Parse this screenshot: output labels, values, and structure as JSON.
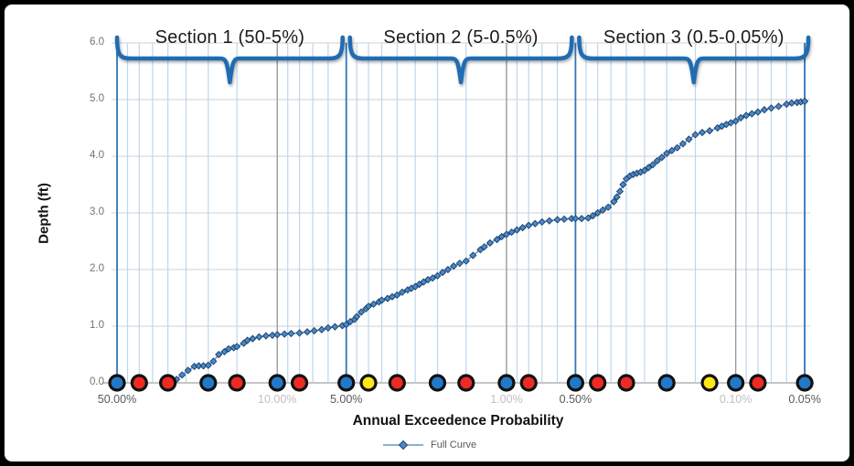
{
  "window": {
    "background": "#000000",
    "card_background": "#ffffff"
  },
  "chart_data": {
    "type": "line",
    "title": "",
    "xlabel": "Annual Exceedence Probability",
    "ylabel": "Depth (ft)",
    "x_scale": "log10-reversed-percent",
    "x_range_pct": [
      50,
      0.05
    ],
    "ylim": [
      0,
      6
    ],
    "grid": "on",
    "legend_position": "bottom-center",
    "sections": [
      {
        "label": "Section 1 (50-5%)",
        "from_pct": 50,
        "to_pct": 5
      },
      {
        "label": "Section 2 (5-0.5%)",
        "from_pct": 5,
        "to_pct": 0.5
      },
      {
        "label": "Section 3 (0.5-0.05%)",
        "from_pct": 0.5,
        "to_pct": 0.05
      }
    ],
    "x_ticks": [
      {
        "label": "50.00%",
        "value": 50,
        "strong": true
      },
      {
        "label": "10.00%",
        "value": 10,
        "strong": false
      },
      {
        "label": "5.00%",
        "value": 5,
        "strong": true
      },
      {
        "label": "1.00%",
        "value": 1,
        "strong": false
      },
      {
        "label": "0.50%",
        "value": 0.5,
        "strong": true
      },
      {
        "label": "0.10%",
        "value": 0.1,
        "strong": false
      },
      {
        "label": "0.05%",
        "value": 0.05,
        "strong": true
      }
    ],
    "y_ticks": [
      {
        "label": "0.0",
        "value": 0
      },
      {
        "label": "1.0",
        "value": 1
      },
      {
        "label": "2.0",
        "value": 2
      },
      {
        "label": "3.0",
        "value": 3
      },
      {
        "label": "4.0",
        "value": 4
      },
      {
        "label": "5.0",
        "value": 5
      },
      {
        "label": "6.0",
        "value": 6
      }
    ],
    "gridlines": {
      "minor_vertical_pct": [
        45,
        40,
        35,
        30,
        25,
        20,
        15,
        9,
        8,
        7,
        6,
        4.5,
        4,
        3.5,
        3,
        2.5,
        2,
        1.5,
        0.9,
        0.8,
        0.7,
        0.6,
        0.45,
        0.4,
        0.35,
        0.3,
        0.25,
        0.2,
        0.15,
        0.09,
        0.08,
        0.07,
        0.06
      ],
      "major_vertical_pct": [
        10,
        1,
        0.1
      ],
      "boundary_vertical_pct": [
        50,
        5,
        0.5,
        0.05
      ],
      "horizontal_values": [
        1,
        2,
        3,
        4,
        5,
        6
      ]
    },
    "event_dots": [
      {
        "value_pct": 50,
        "color": "blue"
      },
      {
        "value_pct": 40,
        "color": "red"
      },
      {
        "value_pct": 30,
        "color": "red"
      },
      {
        "value_pct": 20,
        "color": "blue"
      },
      {
        "value_pct": 15,
        "color": "red"
      },
      {
        "value_pct": 10,
        "color": "blue"
      },
      {
        "value_pct": 8,
        "color": "red"
      },
      {
        "value_pct": 5,
        "color": "blue"
      },
      {
        "value_pct": 4,
        "color": "yellow"
      },
      {
        "value_pct": 3,
        "color": "red"
      },
      {
        "value_pct": 2,
        "color": "blue"
      },
      {
        "value_pct": 1.5,
        "color": "red"
      },
      {
        "value_pct": 1,
        "color": "blue"
      },
      {
        "value_pct": 0.8,
        "color": "red"
      },
      {
        "value_pct": 0.5,
        "color": "blue"
      },
      {
        "value_pct": 0.4,
        "color": "red"
      },
      {
        "value_pct": 0.3,
        "color": "red"
      },
      {
        "value_pct": 0.2,
        "color": "blue"
      },
      {
        "value_pct": 0.13,
        "color": "yellow"
      },
      {
        "value_pct": 0.1,
        "color": "blue"
      },
      {
        "value_pct": 0.08,
        "color": "red"
      },
      {
        "value_pct": 0.05,
        "color": "blue"
      }
    ],
    "series": [
      {
        "name": "Full Curve",
        "points": [
          [
            29,
            0.0
          ],
          [
            27.5,
            0.06
          ],
          [
            26,
            0.14
          ],
          [
            24.5,
            0.22
          ],
          [
            23,
            0.29
          ],
          [
            22,
            0.3
          ],
          [
            21,
            0.3
          ],
          [
            20,
            0.31
          ],
          [
            19,
            0.38
          ],
          [
            18,
            0.5
          ],
          [
            17,
            0.55
          ],
          [
            16.3,
            0.6
          ],
          [
            15.5,
            0.62
          ],
          [
            15,
            0.64
          ],
          [
            14,
            0.7
          ],
          [
            13.5,
            0.75
          ],
          [
            12.8,
            0.78
          ],
          [
            12,
            0.81
          ],
          [
            11.2,
            0.83
          ],
          [
            10.5,
            0.84
          ],
          [
            10,
            0.85
          ],
          [
            9.3,
            0.86
          ],
          [
            8.7,
            0.87
          ],
          [
            8,
            0.88
          ],
          [
            7.4,
            0.9
          ],
          [
            6.9,
            0.92
          ],
          [
            6.4,
            0.94
          ],
          [
            6,
            0.97
          ],
          [
            5.6,
            0.99
          ],
          [
            5.2,
            1.01
          ],
          [
            5,
            1.03
          ],
          [
            4.8,
            1.08
          ],
          [
            4.6,
            1.12
          ],
          [
            4.5,
            1.17
          ],
          [
            4.3,
            1.25
          ],
          [
            4.1,
            1.31
          ],
          [
            4,
            1.35
          ],
          [
            3.8,
            1.39
          ],
          [
            3.6,
            1.43
          ],
          [
            3.5,
            1.46
          ],
          [
            3.3,
            1.49
          ],
          [
            3.15,
            1.52
          ],
          [
            3,
            1.55
          ],
          [
            2.85,
            1.6
          ],
          [
            2.7,
            1.64
          ],
          [
            2.6,
            1.67
          ],
          [
            2.5,
            1.7
          ],
          [
            2.4,
            1.74
          ],
          [
            2.3,
            1.78
          ],
          [
            2.2,
            1.82
          ],
          [
            2.1,
            1.85
          ],
          [
            2,
            1.89
          ],
          [
            1.9,
            1.95
          ],
          [
            1.8,
            2.0
          ],
          [
            1.7,
            2.06
          ],
          [
            1.6,
            2.11
          ],
          [
            1.5,
            2.15
          ],
          [
            1.4,
            2.25
          ],
          [
            1.3,
            2.35
          ],
          [
            1.25,
            2.4
          ],
          [
            1.18,
            2.47
          ],
          [
            1.1,
            2.53
          ],
          [
            1.05,
            2.58
          ],
          [
            1,
            2.62
          ],
          [
            0.95,
            2.66
          ],
          [
            0.9,
            2.7
          ],
          [
            0.85,
            2.74
          ],
          [
            0.8,
            2.78
          ],
          [
            0.75,
            2.81
          ],
          [
            0.7,
            2.84
          ],
          [
            0.65,
            2.86
          ],
          [
            0.6,
            2.88
          ],
          [
            0.56,
            2.89
          ],
          [
            0.52,
            2.9
          ],
          [
            0.5,
            2.9
          ],
          [
            0.47,
            2.9
          ],
          [
            0.44,
            2.91
          ],
          [
            0.42,
            2.95
          ],
          [
            0.4,
            3.0
          ],
          [
            0.38,
            3.05
          ],
          [
            0.36,
            3.1
          ],
          [
            0.34,
            3.2
          ],
          [
            0.33,
            3.28
          ],
          [
            0.32,
            3.38
          ],
          [
            0.31,
            3.5
          ],
          [
            0.3,
            3.6
          ],
          [
            0.29,
            3.65
          ],
          [
            0.28,
            3.68
          ],
          [
            0.27,
            3.7
          ],
          [
            0.26,
            3.72
          ],
          [
            0.25,
            3.75
          ],
          [
            0.24,
            3.8
          ],
          [
            0.23,
            3.85
          ],
          [
            0.22,
            3.92
          ],
          [
            0.21,
            3.98
          ],
          [
            0.2,
            4.05
          ],
          [
            0.19,
            4.1
          ],
          [
            0.18,
            4.15
          ],
          [
            0.17,
            4.22
          ],
          [
            0.16,
            4.3
          ],
          [
            0.15,
            4.38
          ],
          [
            0.14,
            4.42
          ],
          [
            0.13,
            4.45
          ],
          [
            0.12,
            4.5
          ],
          [
            0.115,
            4.53
          ],
          [
            0.11,
            4.56
          ],
          [
            0.105,
            4.59
          ],
          [
            0.1,
            4.62
          ],
          [
            0.095,
            4.68
          ],
          [
            0.09,
            4.72
          ],
          [
            0.085,
            4.75
          ],
          [
            0.08,
            4.78
          ],
          [
            0.075,
            4.82
          ],
          [
            0.07,
            4.85
          ],
          [
            0.065,
            4.88
          ],
          [
            0.06,
            4.92
          ],
          [
            0.057,
            4.94
          ],
          [
            0.054,
            4.95
          ],
          [
            0.052,
            4.96
          ],
          [
            0.05,
            4.97
          ]
        ]
      }
    ]
  },
  "legend": {
    "label": "Full Curve"
  },
  "colors": {
    "brace": "#1f6cb3",
    "curve_line": "#6a96cb",
    "marker_fill": "#4e88c7",
    "marker_stroke": "#1c4670",
    "minor_grid": "#bdd7ee",
    "major_grid": "#9b9b9b",
    "boundary_line": "#2e75b6",
    "horizontal_grid": "#d9d9d9",
    "axis_line": "#c6c6c6",
    "dot_blue": "#2279c8",
    "dot_red": "#ee2a25",
    "dot_yellow": "#ffe817",
    "dot_ring": "#111111"
  }
}
